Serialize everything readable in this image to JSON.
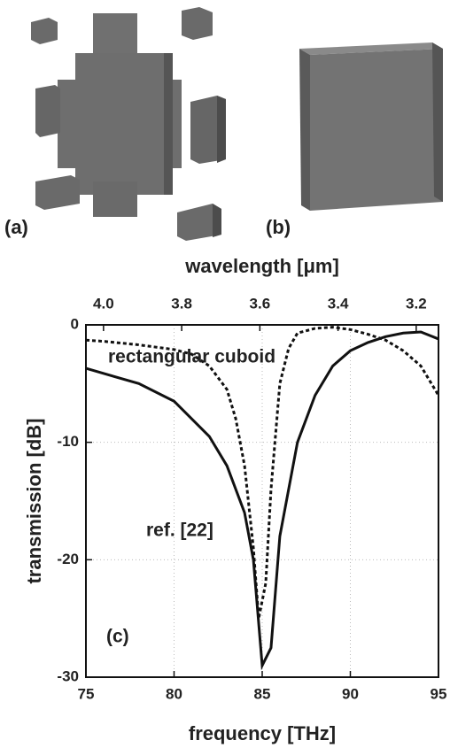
{
  "panels": {
    "a": "(a)",
    "b": "(b)"
  },
  "chart_data": {
    "type": "line",
    "xlabel": "frequency [THz]",
    "ylabel": "transmission [dB]",
    "x2label": "wavelength [μm]",
    "panel_label": "(c)",
    "xlim": [
      75,
      95
    ],
    "xticks": [
      75,
      80,
      85,
      90,
      95
    ],
    "ylim": [
      -30,
      0
    ],
    "yticks": [
      0,
      -10,
      -20,
      -30
    ],
    "x2lim": [
      4.045,
      3.143
    ],
    "x2ticks": [
      {
        "value": 4.0,
        "label": "4.0"
      },
      {
        "value": 3.8,
        "label": "3.8"
      },
      {
        "value": 3.6,
        "label": "3.6"
      },
      {
        "value": 3.4,
        "label": "3.4"
      },
      {
        "value": 3.2,
        "label": "3.2"
      }
    ],
    "grid": true,
    "series": [
      {
        "name": "ref. [22]",
        "color": "#111111",
        "style": "solid",
        "x": [
          75,
          78,
          80,
          82,
          83,
          84,
          84.5,
          85,
          85.5,
          86,
          87,
          88,
          89,
          90,
          91,
          92,
          93,
          94,
          95
        ],
        "values": [
          -3.7,
          -5,
          -6.5,
          -9.5,
          -12,
          -16,
          -20,
          -29,
          -27.5,
          -18,
          -10,
          -6,
          -3.5,
          -2.2,
          -1.5,
          -1,
          -0.7,
          -0.6,
          -1.2
        ]
      },
      {
        "name": "rectangular cuboid",
        "color": "#111111",
        "style": "dotted",
        "x": [
          75,
          76,
          78,
          80,
          81,
          82,
          83,
          83.5,
          84,
          84.5,
          84.8,
          85.2,
          85.5,
          86,
          86.5,
          87,
          88,
          89,
          90,
          91,
          92,
          93,
          94,
          95
        ],
        "values": [
          -1.3,
          -1.4,
          -1.7,
          -2.1,
          -2.5,
          -3.5,
          -5.5,
          -8,
          -12,
          -19,
          -25,
          -22,
          -14,
          -5,
          -2,
          -0.7,
          -0.3,
          -0.2,
          -0.4,
          -0.8,
          -1.3,
          -2.2,
          -3.5,
          -6
        ]
      }
    ]
  }
}
